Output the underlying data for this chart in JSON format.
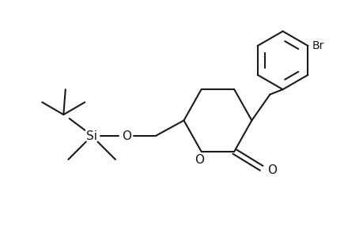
{
  "background_color": "#ffffff",
  "line_color": "#1a1a1a",
  "line_width": 1.5,
  "font_size": 10,
  "figsize": [
    4.6,
    3.0
  ],
  "dpi": 100,
  "xlim": [
    0,
    9.2
  ],
  "ylim": [
    0,
    6.0
  ]
}
